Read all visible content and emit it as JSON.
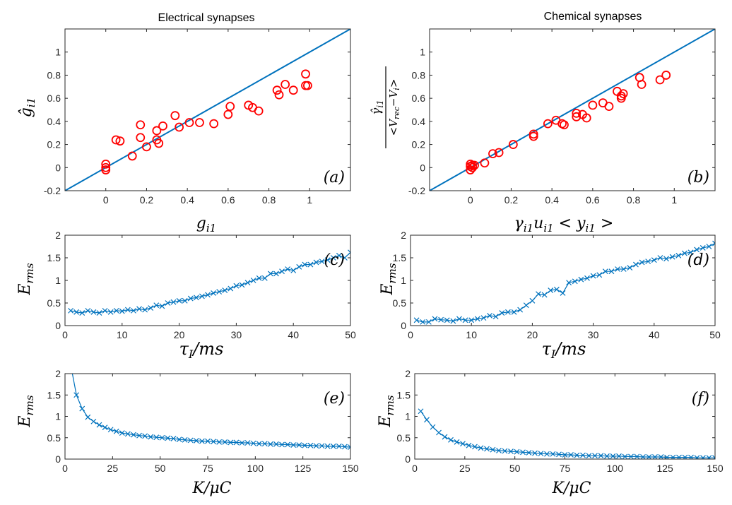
{
  "figure": {
    "colors": {
      "line": "#0072BD",
      "scatter": "#FF0000",
      "axis": "#262626"
    }
  },
  "chart_data": [
    {
      "type": "scatter",
      "id": "a",
      "panel_label": "(a)",
      "title": "Electrical synapses",
      "xlabel": "g_i1",
      "ylabel": "ĝ_i1",
      "xlim": [
        -0.2,
        1.2
      ],
      "ylim": [
        -0.2,
        1.2
      ],
      "xticks": [
        0,
        0.2,
        0.4,
        0.6,
        0.8,
        1
      ],
      "xtick_labels": [
        "0",
        "0.2",
        "0.4",
        "0.6",
        "0.8",
        "1"
      ],
      "yticks": [
        -0.2,
        0,
        0.2,
        0.4,
        0.6,
        0.8,
        1
      ],
      "ytick_labels": [
        "-0.2",
        "0",
        "0.2",
        "0.4",
        "0.6",
        "0.8",
        "1"
      ],
      "reference_line": [
        [
          -0.2,
          -0.2
        ],
        [
          1.2,
          1.2
        ]
      ],
      "points": [
        [
          0,
          0.03
        ],
        [
          0,
          0.0
        ],
        [
          0,
          -0.02
        ],
        [
          0.05,
          0.24
        ],
        [
          0.07,
          0.23
        ],
        [
          0.13,
          0.1
        ],
        [
          0.17,
          0.37
        ],
        [
          0.17,
          0.26
        ],
        [
          0.2,
          0.18
        ],
        [
          0.25,
          0.32
        ],
        [
          0.25,
          0.24
        ],
        [
          0.26,
          0.21
        ],
        [
          0.28,
          0.36
        ],
        [
          0.34,
          0.45
        ],
        [
          0.36,
          0.35
        ],
        [
          0.41,
          0.39
        ],
        [
          0.46,
          0.39
        ],
        [
          0.53,
          0.38
        ],
        [
          0.6,
          0.46
        ],
        [
          0.61,
          0.53
        ],
        [
          0.7,
          0.54
        ],
        [
          0.72,
          0.52
        ],
        [
          0.75,
          0.49
        ],
        [
          0.84,
          0.67
        ],
        [
          0.85,
          0.63
        ],
        [
          0.88,
          0.72
        ],
        [
          0.92,
          0.67
        ],
        [
          0.98,
          0.71
        ],
        [
          0.99,
          0.71
        ],
        [
          0.98,
          0.81
        ]
      ]
    },
    {
      "type": "scatter",
      "id": "b",
      "panel_label": "(b)",
      "title": "Chemical synapses",
      "xlabel": "γ_i1 u_i1 < y_i1 >",
      "ylabel_num": "γ̂_i1",
      "ylabel_den": "<V_rec−V_i>",
      "xlim": [
        -0.2,
        1.2
      ],
      "ylim": [
        -0.2,
        1.2
      ],
      "xticks": [
        0,
        0.2,
        0.4,
        0.6,
        0.8,
        1
      ],
      "xtick_labels": [
        "0",
        "0.2",
        "0.4",
        "0.6",
        "0.8",
        "1"
      ],
      "yticks": [
        -0.2,
        0,
        0.2,
        0.4,
        0.6,
        0.8,
        1
      ],
      "ytick_labels": [
        "-0.2",
        "0",
        "0.2",
        "0.4",
        "0.6",
        "0.8",
        "1"
      ],
      "reference_line": [
        [
          -0.2,
          -0.2
        ],
        [
          1.2,
          1.2
        ]
      ],
      "points": [
        [
          0,
          0.03
        ],
        [
          0.01,
          0.02
        ],
        [
          0,
          0.01
        ],
        [
          0.02,
          0.02
        ],
        [
          0,
          -0.02
        ],
        [
          0.01,
          0.0
        ],
        [
          0.07,
          0.04
        ],
        [
          0.11,
          0.12
        ],
        [
          0.14,
          0.13
        ],
        [
          0.21,
          0.2
        ],
        [
          0.31,
          0.27
        ],
        [
          0.31,
          0.29
        ],
        [
          0.38,
          0.38
        ],
        [
          0.42,
          0.41
        ],
        [
          0.45,
          0.38
        ],
        [
          0.46,
          0.37
        ],
        [
          0.52,
          0.47
        ],
        [
          0.52,
          0.44
        ],
        [
          0.55,
          0.46
        ],
        [
          0.57,
          0.43
        ],
        [
          0.6,
          0.54
        ],
        [
          0.65,
          0.56
        ],
        [
          0.68,
          0.53
        ],
        [
          0.72,
          0.66
        ],
        [
          0.74,
          0.62
        ],
        [
          0.75,
          0.64
        ],
        [
          0.74,
          0.6
        ],
        [
          0.83,
          0.78
        ],
        [
          0.84,
          0.72
        ],
        [
          0.93,
          0.76
        ],
        [
          0.96,
          0.8
        ]
      ]
    },
    {
      "type": "line",
      "id": "c",
      "panel_label": "(c)",
      "xlabel": "τ_I / ms",
      "ylabel": "E_rms",
      "xlim": [
        0,
        50
      ],
      "ylim": [
        0,
        2
      ],
      "xticks": [
        0,
        10,
        20,
        30,
        40,
        50
      ],
      "xtick_labels": [
        "0",
        "10",
        "20",
        "30",
        "40",
        "50"
      ],
      "yticks": [
        0,
        0.5,
        1,
        1.5,
        2
      ],
      "ytick_labels": [
        "0",
        "0.5",
        "1",
        "1.5",
        "2"
      ],
      "x": [
        1,
        2,
        3,
        4,
        5,
        6,
        7,
        8,
        9,
        10,
        11,
        12,
        13,
        14,
        15,
        16,
        17,
        18,
        19,
        20,
        21,
        22,
        23,
        24,
        25,
        26,
        27,
        28,
        29,
        30,
        31,
        32,
        33,
        34,
        35,
        36,
        37,
        38,
        39,
        40,
        41,
        42,
        43,
        44,
        45,
        46,
        47,
        48,
        49,
        50
      ],
      "values": [
        0.33,
        0.3,
        0.28,
        0.33,
        0.3,
        0.28,
        0.33,
        0.3,
        0.33,
        0.32,
        0.35,
        0.33,
        0.37,
        0.35,
        0.39,
        0.45,
        0.43,
        0.5,
        0.52,
        0.55,
        0.55,
        0.6,
        0.62,
        0.65,
        0.68,
        0.72,
        0.75,
        0.78,
        0.82,
        0.88,
        0.9,
        0.95,
        1.0,
        1.05,
        1.05,
        1.15,
        1.15,
        1.2,
        1.25,
        1.22,
        1.3,
        1.35,
        1.35,
        1.4,
        1.42,
        1.45,
        1.5,
        1.55,
        1.5,
        1.62
      ]
    },
    {
      "type": "line",
      "id": "d",
      "panel_label": "(d)",
      "xlabel": "τ_I / ms",
      "ylabel": "E_rms",
      "xlim": [
        0,
        50
      ],
      "ylim": [
        0,
        2
      ],
      "xticks": [
        0,
        10,
        20,
        30,
        40,
        50
      ],
      "xtick_labels": [
        "0",
        "10",
        "20",
        "30",
        "40",
        "50"
      ],
      "yticks": [
        0,
        0.5,
        1,
        1.5,
        2
      ],
      "ytick_labels": [
        "0",
        "0.5",
        "1",
        "1.5",
        "2"
      ],
      "x": [
        1,
        2,
        3,
        4,
        5,
        6,
        7,
        8,
        9,
        10,
        11,
        12,
        13,
        14,
        15,
        16,
        17,
        18,
        19,
        20,
        21,
        22,
        23,
        24,
        25,
        26,
        27,
        28,
        29,
        30,
        31,
        32,
        33,
        34,
        35,
        36,
        37,
        38,
        39,
        40,
        41,
        42,
        43,
        44,
        45,
        46,
        47,
        48,
        49,
        50
      ],
      "values": [
        0.12,
        0.08,
        0.08,
        0.15,
        0.13,
        0.12,
        0.1,
        0.15,
        0.12,
        0.12,
        0.15,
        0.17,
        0.22,
        0.2,
        0.28,
        0.3,
        0.3,
        0.35,
        0.45,
        0.55,
        0.7,
        0.68,
        0.78,
        0.8,
        0.72,
        0.95,
        0.98,
        1.02,
        1.05,
        1.1,
        1.12,
        1.2,
        1.2,
        1.25,
        1.25,
        1.28,
        1.35,
        1.4,
        1.42,
        1.45,
        1.5,
        1.48,
        1.52,
        1.55,
        1.6,
        1.62,
        1.68,
        1.72,
        1.75,
        1.82
      ]
    },
    {
      "type": "line",
      "id": "e",
      "panel_label": "(e)",
      "xlabel": "K / μC",
      "ylabel": "E_rms",
      "xlim": [
        0,
        150
      ],
      "ylim": [
        0,
        2
      ],
      "xticks": [
        0,
        25,
        50,
        75,
        100,
        125,
        150
      ],
      "xtick_labels": [
        "0",
        "25",
        "50",
        "75",
        "100",
        "125",
        "150"
      ],
      "yticks": [
        0,
        0.5,
        1,
        1.5,
        2
      ],
      "ytick_labels": [
        "0",
        "0.5",
        "1",
        "1.5",
        "2"
      ],
      "x": [
        3,
        6,
        9,
        12,
        15,
        18,
        21,
        24,
        27,
        30,
        33,
        36,
        39,
        42,
        45,
        48,
        51,
        54,
        57,
        60,
        63,
        66,
        69,
        72,
        75,
        78,
        81,
        84,
        87,
        90,
        93,
        96,
        99,
        102,
        105,
        108,
        111,
        114,
        117,
        120,
        123,
        126,
        129,
        132,
        135,
        138,
        141,
        144,
        147,
        150
      ],
      "values": [
        2.2,
        1.5,
        1.18,
        0.98,
        0.88,
        0.8,
        0.74,
        0.69,
        0.65,
        0.61,
        0.59,
        0.57,
        0.55,
        0.54,
        0.52,
        0.51,
        0.5,
        0.49,
        0.48,
        0.46,
        0.45,
        0.44,
        0.43,
        0.42,
        0.42,
        0.41,
        0.4,
        0.4,
        0.39,
        0.39,
        0.38,
        0.38,
        0.37,
        0.36,
        0.36,
        0.35,
        0.35,
        0.34,
        0.34,
        0.33,
        0.33,
        0.32,
        0.32,
        0.31,
        0.31,
        0.3,
        0.3,
        0.3,
        0.29,
        0.28
      ],
      "markers_from_index": 1
    },
    {
      "type": "line",
      "id": "f",
      "panel_label": "(f)",
      "xlabel": "K / μC",
      "ylabel": "E_rms",
      "xlim": [
        0,
        150
      ],
      "ylim": [
        0,
        2
      ],
      "xticks": [
        0,
        25,
        50,
        75,
        100,
        125,
        150
      ],
      "xtick_labels": [
        "0",
        "25",
        "50",
        "75",
        "100",
        "125",
        "150"
      ],
      "yticks": [
        0,
        0.5,
        1,
        1.5,
        2
      ],
      "ytick_labels": [
        "0",
        "0.5",
        "1",
        "1.5",
        "2"
      ],
      "x": [
        3,
        6,
        9,
        12,
        15,
        18,
        21,
        24,
        27,
        30,
        33,
        36,
        39,
        42,
        45,
        48,
        51,
        54,
        57,
        60,
        63,
        66,
        69,
        72,
        75,
        78,
        81,
        84,
        87,
        90,
        93,
        96,
        99,
        102,
        105,
        108,
        111,
        114,
        117,
        120,
        123,
        126,
        129,
        132,
        135,
        138,
        141,
        144,
        147,
        150
      ],
      "values": [
        1.12,
        0.92,
        0.75,
        0.62,
        0.52,
        0.45,
        0.4,
        0.36,
        0.32,
        0.29,
        0.26,
        0.24,
        0.22,
        0.2,
        0.19,
        0.18,
        0.17,
        0.16,
        0.15,
        0.14,
        0.13,
        0.12,
        0.12,
        0.11,
        0.1,
        0.1,
        0.09,
        0.09,
        0.08,
        0.08,
        0.08,
        0.07,
        0.07,
        0.07,
        0.06,
        0.06,
        0.06,
        0.05,
        0.05,
        0.05,
        0.05,
        0.04,
        0.04,
        0.04,
        0.04,
        0.04,
        0.03,
        0.03,
        0.03,
        0.03
      ],
      "markers_from_index": 0
    }
  ]
}
